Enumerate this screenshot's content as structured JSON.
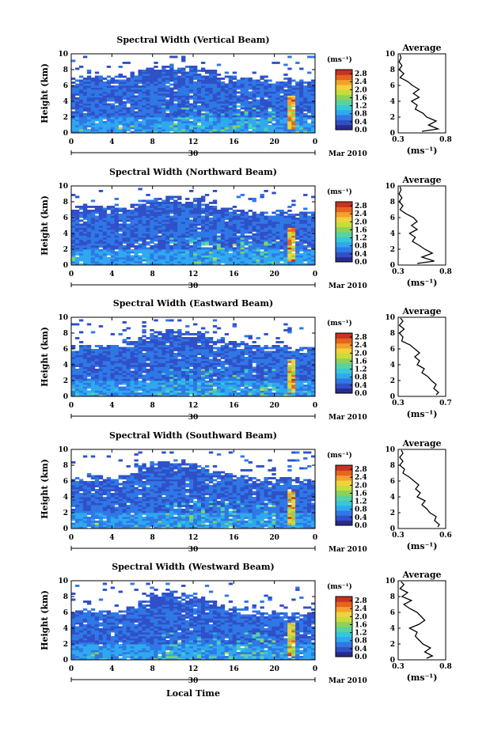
{
  "figure": {
    "xlabel": "Local Time",
    "date_label": "Mar 2010",
    "day_label": "30",
    "unit_label": "(ms⁻¹)",
    "avg_title": "Average",
    "avg_xlabel": "(ms⁻¹)",
    "ylabel": "Height (km)",
    "colormap": [
      "#2a2a8c",
      "#3050c8",
      "#2f78e6",
      "#2fa8f0",
      "#36c8d8",
      "#5ad2a0",
      "#8cd25a",
      "#c8dc3c",
      "#f0d23c",
      "#f5a02d",
      "#e6641e",
      "#c8321e"
    ]
  },
  "chart_data": [
    {
      "type": "heatmap",
      "title": "Spectral Width (Vertical Beam)",
      "x_ticks": [
        "0",
        "4",
        "8",
        "12",
        "16",
        "20",
        "0"
      ],
      "xlim": [
        0,
        24
      ],
      "y_ticks": [
        "0",
        "2",
        "4",
        "6",
        "8",
        "10"
      ],
      "ylim": [
        0,
        10
      ],
      "colorbar_ticks": [
        "0.0",
        "0.4",
        "0.8",
        "1.2",
        "1.6",
        "2.0",
        "2.4",
        "2.8"
      ],
      "colorbar_range": [
        0,
        3.0
      ],
      "cloud_top_km": [
        6.8,
        6.9,
        6.8,
        6.9,
        7.0,
        7.2,
        7.8,
        8.1,
        8.2,
        8.3,
        8.1,
        7.9,
        7.6,
        7.1,
        6.9,
        6.6,
        6.5,
        6.6,
        6.6,
        6.5,
        6.4,
        6.3
      ],
      "average_profile": {
        "title": "Average",
        "x_ticks": [
          "0.3",
          "0.8"
        ],
        "xlim": [
          0.3,
          0.8
        ],
        "height_km": [
          0.2,
          0.5,
          1.0,
          1.5,
          2.0,
          2.5,
          3.0,
          3.5,
          4.0,
          4.5,
          5.0,
          5.5,
          6.0,
          6.5,
          7.0,
          7.5,
          8.0,
          8.5,
          9.0,
          9.5,
          9.9
        ],
        "value": [
          0.55,
          0.72,
          0.62,
          0.7,
          0.6,
          0.56,
          0.48,
          0.5,
          0.44,
          0.52,
          0.46,
          0.52,
          0.45,
          0.4,
          0.32,
          0.36,
          0.31,
          0.34,
          0.31,
          0.33,
          0.32
        ]
      }
    },
    {
      "type": "heatmap",
      "title": "Spectral Width (Northward Beam)",
      "x_ticks": [
        "0",
        "4",
        "8",
        "12",
        "16",
        "20",
        "0"
      ],
      "xlim": [
        0,
        24
      ],
      "y_ticks": [
        "0",
        "2",
        "4",
        "6",
        "8",
        "10"
      ],
      "ylim": [
        0,
        10
      ],
      "colorbar_ticks": [
        "0.0",
        "0.4",
        "0.8",
        "1.2",
        "1.6",
        "2.0",
        "2.4",
        "2.8"
      ],
      "colorbar_range": [
        0,
        3.0
      ],
      "cloud_top_km": [
        7.0,
        7.1,
        7.0,
        7.1,
        6.9,
        7.3,
        7.9,
        8.2,
        8.4,
        8.3,
        8.1,
        8.0,
        7.7,
        7.2,
        7.0,
        6.7,
        6.6,
        6.6,
        6.6,
        6.5,
        6.4,
        6.3
      ],
      "average_profile": {
        "title": "Average",
        "x_ticks": [
          "0.3",
          "0.8"
        ],
        "xlim": [
          0.3,
          0.8
        ],
        "height_km": [
          0.2,
          0.5,
          1.0,
          1.5,
          2.0,
          2.5,
          3.0,
          3.5,
          4.0,
          4.5,
          5.0,
          5.5,
          6.0,
          6.5,
          7.0,
          7.5,
          8.0,
          8.5,
          9.0,
          9.5,
          9.9
        ],
        "value": [
          0.5,
          0.68,
          0.55,
          0.66,
          0.58,
          0.52,
          0.45,
          0.48,
          0.42,
          0.5,
          0.44,
          0.5,
          0.46,
          0.38,
          0.32,
          0.35,
          0.31,
          0.34,
          0.31,
          0.33,
          0.32
        ]
      }
    },
    {
      "type": "heatmap",
      "title": "Spectral Width (Eastward Beam)",
      "x_ticks": [
        "0",
        "4",
        "8",
        "12",
        "16",
        "20",
        "0"
      ],
      "xlim": [
        0,
        24
      ],
      "y_ticks": [
        "0",
        "2",
        "4",
        "6",
        "8",
        "10"
      ],
      "ylim": [
        0,
        10
      ],
      "colorbar_ticks": [
        "0.0",
        "0.4",
        "0.8",
        "1.2",
        "1.6",
        "2.0",
        "2.4",
        "2.8"
      ],
      "colorbar_range": [
        0,
        3.0
      ],
      "cloud_top_km": [
        6.0,
        6.2,
        6.0,
        6.1,
        6.2,
        6.5,
        7.3,
        7.8,
        8.0,
        8.1,
        7.9,
        7.6,
        7.2,
        6.8,
        6.6,
        6.3,
        6.1,
        6.0,
        6.1,
        6.0,
        5.9,
        5.8
      ],
      "average_profile": {
        "title": "Average",
        "x_ticks": [
          "0.3",
          "0.7"
        ],
        "xlim": [
          0.3,
          0.7
        ],
        "height_km": [
          0.2,
          0.5,
          1.0,
          1.5,
          2.0,
          2.5,
          3.0,
          3.5,
          4.0,
          4.5,
          5.0,
          5.5,
          6.0,
          6.5,
          7.0,
          7.5,
          8.0,
          8.5,
          9.0,
          9.5,
          9.9
        ],
        "value": [
          0.62,
          0.64,
          0.6,
          0.62,
          0.58,
          0.55,
          0.5,
          0.52,
          0.46,
          0.48,
          0.44,
          0.48,
          0.44,
          0.4,
          0.33,
          0.34,
          0.31,
          0.35,
          0.31,
          0.34,
          0.32
        ]
      }
    },
    {
      "type": "heatmap",
      "title": "Spectral Width (Southward Beam)",
      "x_ticks": [
        "0",
        "4",
        "8",
        "12",
        "16",
        "20",
        "0"
      ],
      "xlim": [
        0,
        24
      ],
      "y_ticks": [
        "0",
        "2",
        "4",
        "6",
        "8",
        "10"
      ],
      "ylim": [
        0,
        10
      ],
      "colorbar_ticks": [
        "0.0",
        "0.4",
        "0.8",
        "1.2",
        "1.6",
        "2.0",
        "2.4",
        "2.8"
      ],
      "colorbar_range": [
        0,
        3.0
      ],
      "cloud_top_km": [
        6.2,
        6.4,
        6.3,
        6.2,
        6.4,
        6.7,
        7.6,
        8.1,
        8.3,
        8.3,
        8.0,
        7.8,
        7.3,
        6.9,
        6.6,
        6.4,
        6.1,
        6.0,
        6.1,
        6.0,
        5.9,
        5.8
      ],
      "average_profile": {
        "title": "Average",
        "x_ticks": [
          "0.3",
          "0.6"
        ],
        "xlim": [
          0.3,
          0.6
        ],
        "height_km": [
          0.2,
          0.5,
          1.0,
          1.5,
          2.0,
          2.5,
          3.0,
          3.5,
          4.0,
          4.5,
          5.0,
          5.5,
          6.0,
          6.5,
          7.0,
          7.5,
          8.0,
          8.5,
          9.0,
          9.5,
          9.9
        ],
        "value": [
          0.55,
          0.56,
          0.53,
          0.54,
          0.5,
          0.48,
          0.45,
          0.47,
          0.42,
          0.44,
          0.41,
          0.43,
          0.4,
          0.37,
          0.33,
          0.34,
          0.31,
          0.33,
          0.31,
          0.33,
          0.32
        ]
      }
    },
    {
      "type": "heatmap",
      "title": "Spectral Width (Westward Beam)",
      "x_ticks": [
        "0",
        "4",
        "8",
        "12",
        "16",
        "20",
        "0"
      ],
      "xlim": [
        0,
        24
      ],
      "y_ticks": [
        "0",
        "2",
        "4",
        "6",
        "8",
        "10"
      ],
      "ylim": [
        0,
        10
      ],
      "colorbar_ticks": [
        "0.0",
        "0.4",
        "0.8",
        "1.2",
        "1.6",
        "2.0",
        "2.4",
        "2.8"
      ],
      "colorbar_range": [
        0,
        3.0
      ],
      "cloud_top_km": [
        5.8,
        6.0,
        5.8,
        5.9,
        6.0,
        6.3,
        7.4,
        8.0,
        8.2,
        8.3,
        8.0,
        7.7,
        7.2,
        6.6,
        6.3,
        6.0,
        5.8,
        5.7,
        5.8,
        5.7,
        5.6,
        5.5
      ],
      "average_profile": {
        "title": "Average",
        "x_ticks": [
          "0.3",
          "0.8"
        ],
        "xlim": [
          0.3,
          0.8
        ],
        "height_km": [
          0.2,
          0.5,
          1.0,
          1.5,
          2.0,
          2.5,
          3.0,
          3.5,
          4.0,
          4.5,
          5.0,
          5.5,
          6.0,
          6.5,
          7.0,
          7.5,
          8.0,
          8.5,
          9.0,
          9.5,
          9.9
        ],
        "value": [
          0.6,
          0.66,
          0.58,
          0.64,
          0.56,
          0.52,
          0.48,
          0.5,
          0.42,
          0.52,
          0.58,
          0.54,
          0.5,
          0.42,
          0.36,
          0.44,
          0.34,
          0.4,
          0.32,
          0.36,
          0.33
        ]
      }
    }
  ]
}
